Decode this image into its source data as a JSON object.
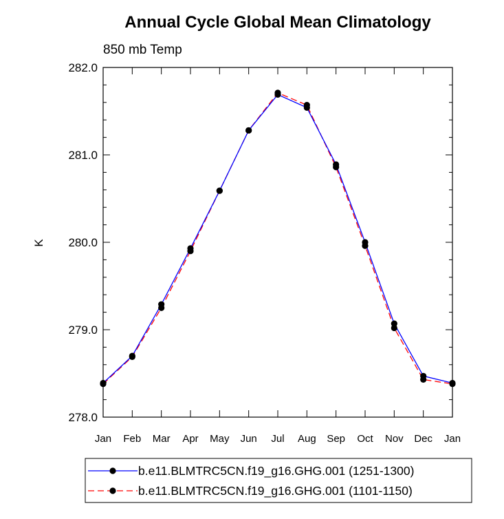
{
  "chart_data": {
    "type": "line",
    "title": "Annual Cycle Global Mean Climatology",
    "subtitle": "850 mb Temp",
    "ylabel": "K",
    "xlabel": "",
    "categories": [
      "Jan",
      "Feb",
      "Mar",
      "Apr",
      "May",
      "Jun",
      "Jul",
      "Aug",
      "Sep",
      "Oct",
      "Nov",
      "Dec",
      "Jan"
    ],
    "ylim": [
      278.0,
      282.0
    ],
    "yticks": [
      "278.0",
      "279.0",
      "280.0",
      "281.0",
      "282.0"
    ],
    "series": [
      {
        "name": "b.e11.BLMTRC5CN.f19_g16.GHG.001 (1251-1300)",
        "color": "#0000ff",
        "dash": "solid",
        "values": [
          278.39,
          278.7,
          279.29,
          279.93,
          280.59,
          281.28,
          281.69,
          281.54,
          280.89,
          280.0,
          279.07,
          278.47,
          278.39
        ]
      },
      {
        "name": "b.e11.BLMTRC5CN.f19_g16.GHG.001 (1101-1150)",
        "color": "#ff0000",
        "dash": "dashed",
        "values": [
          278.38,
          278.69,
          279.25,
          279.9,
          280.59,
          281.28,
          281.71,
          281.57,
          280.86,
          279.96,
          279.02,
          278.43,
          278.38
        ]
      }
    ],
    "marker_color": "#000000",
    "grid": false,
    "legend_position": "bottom"
  }
}
